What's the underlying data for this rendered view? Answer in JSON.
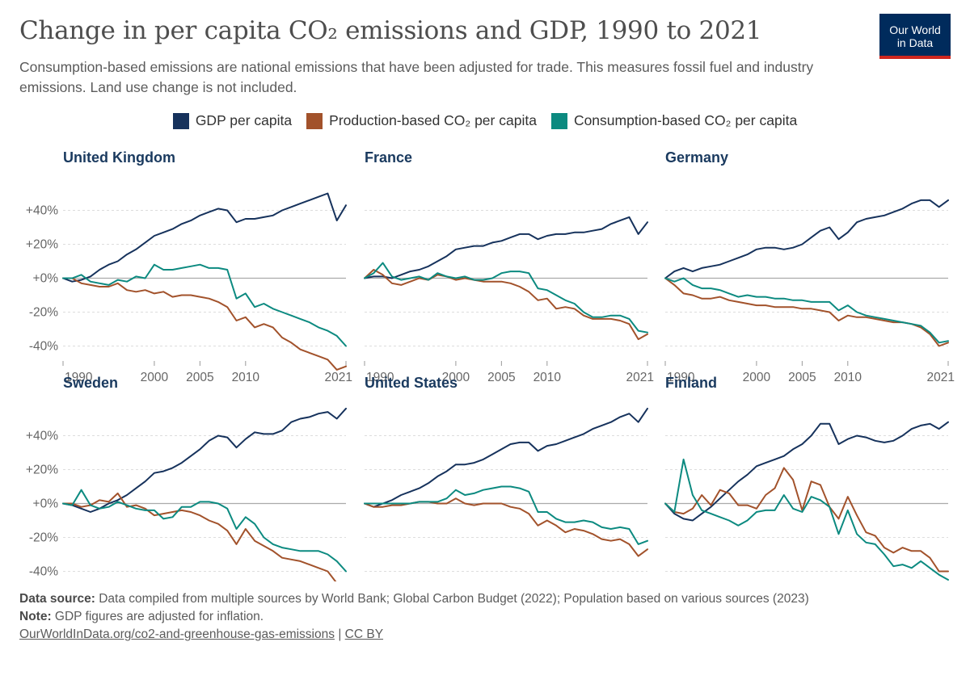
{
  "header": {
    "title": "Change in per capita CO₂ emissions and GDP, 1990 to 2021",
    "subtitle": "Consumption-based emissions are national emissions that have been adjusted for trade. This measures fossil fuel and industry emissions. Land use change is not included."
  },
  "logo": {
    "line1": "Our World",
    "line2": "in Data"
  },
  "colors": {
    "gdp": "#16325c",
    "production": "#a2522b",
    "consumption": "#0c8a80",
    "grid": "#dddddd",
    "zero": "#aaaaaa",
    "panel_title": "#1a3a5f"
  },
  "legend": [
    {
      "label": "GDP per capita",
      "color": "#16325c"
    },
    {
      "label": "Production-based CO₂ per capita",
      "color": "#a2522b"
    },
    {
      "label": "Consumption-based CO₂ per capita",
      "color": "#0c8a80"
    }
  ],
  "chart_data": {
    "type": "line",
    "x_start": 1990,
    "x_end": 2021,
    "x_ticks": [
      1990,
      2000,
      2005,
      2010,
      2021
    ],
    "y_ticks": [
      40,
      20,
      0,
      -20,
      -40
    ],
    "y_tick_labels": [
      "+40%",
      "+20%",
      "+0%",
      "-20%",
      "-40%"
    ],
    "ylim": [
      -45,
      55
    ],
    "y_unit": "%",
    "series_names": [
      "GDP per capita",
      "Production-based CO₂ per capita",
      "Consumption-based CO₂ per capita"
    ],
    "panels": [
      {
        "country": "United Kingdom",
        "gdp": [
          0,
          -2,
          -1,
          1,
          5,
          8,
          10,
          14,
          17,
          21,
          25,
          27,
          29,
          32,
          34,
          37,
          39,
          41,
          40,
          33,
          35,
          35,
          36,
          37,
          40,
          42,
          44,
          46,
          48,
          50,
          34,
          43
        ],
        "production": [
          0,
          0,
          -3,
          -4,
          -5,
          -5,
          -3,
          -7,
          -8,
          -7,
          -9,
          -8,
          -11,
          -10,
          -10,
          -11,
          -12,
          -14,
          -17,
          -25,
          -23,
          -29,
          -27,
          -29,
          -35,
          -38,
          -42,
          -44,
          -46,
          -48,
          -54,
          -52
        ],
        "consumption": [
          0,
          0,
          2,
          -2,
          -3,
          -4,
          -1,
          -2,
          1,
          0,
          8,
          5,
          5,
          6,
          7,
          8,
          6,
          6,
          5,
          -12,
          -9,
          -17,
          -15,
          -18,
          -20,
          -22,
          -24,
          -26,
          -29,
          -31,
          -34,
          -40
        ]
      },
      {
        "country": "France",
        "gdp": [
          0,
          1,
          1,
          0,
          2,
          4,
          5,
          7,
          10,
          13,
          17,
          18,
          19,
          19,
          21,
          22,
          24,
          26,
          26,
          23,
          25,
          26,
          26,
          27,
          27,
          28,
          29,
          32,
          34,
          36,
          26,
          33
        ],
        "production": [
          0,
          5,
          2,
          -3,
          -4,
          -2,
          0,
          -1,
          2,
          1,
          -1,
          0,
          -1,
          -2,
          -2,
          -2,
          -3,
          -5,
          -8,
          -13,
          -12,
          -18,
          -17,
          -18,
          -22,
          -24,
          -24,
          -24,
          -25,
          -27,
          -36,
          -33
        ],
        "consumption": [
          0,
          3,
          9,
          1,
          -1,
          0,
          1,
          -1,
          3,
          1,
          0,
          1,
          -1,
          -1,
          0,
          3,
          4,
          4,
          3,
          -6,
          -7,
          -10,
          -13,
          -15,
          -20,
          -23,
          -23,
          -22,
          -22,
          -24,
          -31,
          -32
        ]
      },
      {
        "country": "Germany",
        "gdp": [
          0,
          4,
          6,
          4,
          6,
          7,
          8,
          10,
          12,
          14,
          17,
          18,
          18,
          17,
          18,
          20,
          24,
          28,
          30,
          23,
          27,
          33,
          35,
          36,
          37,
          39,
          41,
          44,
          46,
          46,
          42,
          46
        ],
        "production": [
          0,
          -4,
          -9,
          -10,
          -12,
          -12,
          -11,
          -13,
          -14,
          -15,
          -16,
          -16,
          -17,
          -17,
          -17,
          -18,
          -18,
          -19,
          -20,
          -25,
          -22,
          -23,
          -23,
          -24,
          -25,
          -26,
          -26,
          -27,
          -29,
          -33,
          -40,
          -38
        ],
        "consumption": [
          0,
          -2,
          0,
          -4,
          -6,
          -6,
          -7,
          -9,
          -11,
          -10,
          -11,
          -11,
          -12,
          -12,
          -13,
          -13,
          -14,
          -14,
          -14,
          -19,
          -16,
          -20,
          -22,
          -23,
          -24,
          -25,
          -26,
          -27,
          -28,
          -32,
          -38,
          -37
        ]
      },
      {
        "country": "Sweden",
        "gdp": [
          0,
          -1,
          -3,
          -5,
          -3,
          0,
          2,
          5,
          9,
          13,
          18,
          19,
          21,
          24,
          28,
          32,
          37,
          40,
          39,
          33,
          38,
          42,
          41,
          41,
          43,
          48,
          50,
          51,
          53,
          54,
          50,
          56
        ],
        "production": [
          0,
          0,
          -2,
          -1,
          2,
          1,
          6,
          -2,
          -1,
          -3,
          -7,
          -6,
          -5,
          -4,
          -5,
          -7,
          -10,
          -12,
          -16,
          -24,
          -15,
          -22,
          -25,
          -28,
          -32,
          -33,
          -34,
          -36,
          -38,
          -40,
          -47,
          -49
        ],
        "consumption": [
          0,
          -1,
          8,
          -1,
          -3,
          -2,
          1,
          -1,
          -3,
          -4,
          -4,
          -9,
          -8,
          -2,
          -2,
          1,
          1,
          0,
          -3,
          -15,
          -8,
          -12,
          -20,
          -24,
          -26,
          -27,
          -28,
          -28,
          -28,
          -30,
          -34,
          -40
        ]
      },
      {
        "country": "United States",
        "gdp": [
          0,
          -2,
          0,
          2,
          5,
          7,
          9,
          12,
          16,
          19,
          23,
          23,
          24,
          26,
          29,
          32,
          35,
          36,
          36,
          31,
          34,
          35,
          37,
          39,
          41,
          44,
          46,
          48,
          51,
          53,
          48,
          56
        ],
        "production": [
          0,
          -2,
          -2,
          -1,
          -1,
          0,
          1,
          1,
          0,
          0,
          3,
          0,
          -1,
          0,
          0,
          0,
          -2,
          -3,
          -6,
          -13,
          -10,
          -13,
          -17,
          -15,
          -16,
          -18,
          -21,
          -22,
          -21,
          -24,
          -31,
          -27
        ],
        "consumption": [
          0,
          0,
          0,
          0,
          0,
          0,
          1,
          1,
          1,
          3,
          8,
          5,
          6,
          8,
          9,
          10,
          10,
          9,
          7,
          -5,
          -5,
          -9,
          -11,
          -11,
          -10,
          -11,
          -14,
          -15,
          -14,
          -15,
          -24,
          -22
        ]
      },
      {
        "country": "Finland",
        "gdp": [
          0,
          -6,
          -9,
          -10,
          -6,
          -2,
          3,
          8,
          13,
          17,
          22,
          24,
          26,
          28,
          32,
          35,
          40,
          47,
          47,
          35,
          38,
          40,
          39,
          37,
          36,
          37,
          40,
          44,
          46,
          47,
          44,
          48
        ],
        "production": [
          0,
          -5,
          -6,
          -3,
          5,
          -1,
          8,
          6,
          -1,
          -1,
          -3,
          5,
          9,
          21,
          14,
          -4,
          13,
          11,
          -2,
          -9,
          4,
          -7,
          -17,
          -19,
          -26,
          -29,
          -26,
          -28,
          -28,
          -32,
          -40,
          -40
        ],
        "consumption": [
          0,
          -5,
          26,
          5,
          -4,
          -6,
          -8,
          -10,
          -13,
          -10,
          -5,
          -4,
          -4,
          5,
          -3,
          -5,
          4,
          2,
          -2,
          -18,
          -4,
          -18,
          -23,
          -24,
          -30,
          -37,
          -36,
          -38,
          -34,
          -38,
          -42,
          -45
        ]
      }
    ]
  },
  "footer": {
    "source_label": "Data source:",
    "source_text": "Data compiled from multiple sources by World Bank; Global Carbon Budget (2022); Population based on various sources (2023)",
    "note_label": "Note:",
    "note_text": "GDP figures are adjusted for inflation.",
    "url": "OurWorldInData.org/co2-and-greenhouse-gas-emissions",
    "separator": "|",
    "license": "CC BY"
  }
}
